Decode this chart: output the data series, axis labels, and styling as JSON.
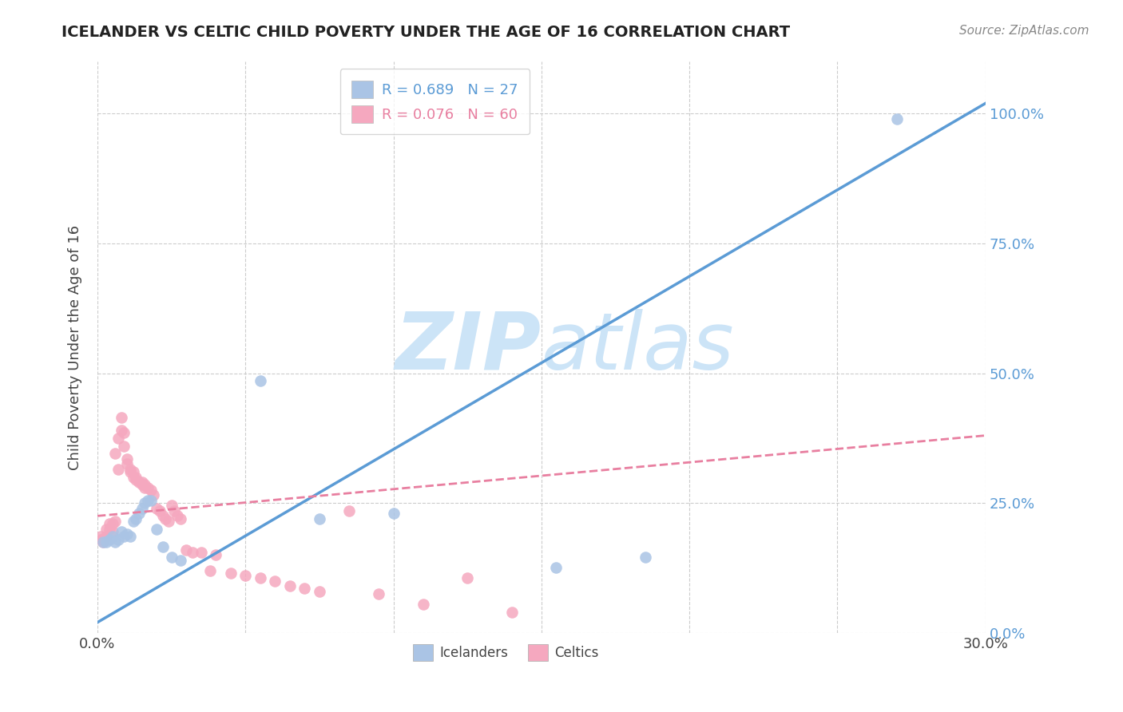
{
  "title": "ICELANDER VS CELTIC CHILD POVERTY UNDER THE AGE OF 16 CORRELATION CHART",
  "source": "Source: ZipAtlas.com",
  "ylabel": "Child Poverty Under the Age of 16",
  "xlim": [
    0.0,
    0.3
  ],
  "ylim": [
    0.0,
    1.1
  ],
  "ytick_vals": [
    0.0,
    0.25,
    0.5,
    0.75,
    1.0
  ],
  "xtick_vals": [
    0.0,
    0.05,
    0.1,
    0.15,
    0.2,
    0.25,
    0.3
  ],
  "icelander_R": 0.689,
  "icelander_N": 27,
  "celtic_R": 0.076,
  "celtic_N": 60,
  "icelander_color": "#aac4e5",
  "celtic_color": "#f5a8bf",
  "icelander_line_color": "#5b9bd5",
  "celtic_line_color": "#e87fa0",
  "right_axis_color": "#5b9bd5",
  "watermark_color": "#cce4f7",
  "background_color": "#ffffff",
  "grid_color": "#cccccc",
  "icelander_x": [
    0.002,
    0.003,
    0.004,
    0.005,
    0.006,
    0.007,
    0.008,
    0.009,
    0.01,
    0.011,
    0.012,
    0.013,
    0.014,
    0.015,
    0.016,
    0.017,
    0.018,
    0.02,
    0.022,
    0.025,
    0.028,
    0.055,
    0.075,
    0.1,
    0.155,
    0.185,
    0.27
  ],
  "icelander_y": [
    0.175,
    0.175,
    0.18,
    0.185,
    0.175,
    0.18,
    0.195,
    0.185,
    0.19,
    0.185,
    0.215,
    0.22,
    0.23,
    0.24,
    0.25,
    0.255,
    0.255,
    0.2,
    0.165,
    0.145,
    0.14,
    0.485,
    0.22,
    0.23,
    0.125,
    0.145,
    0.99
  ],
  "celtic_x": [
    0.001,
    0.001,
    0.002,
    0.002,
    0.003,
    0.003,
    0.004,
    0.004,
    0.005,
    0.005,
    0.006,
    0.006,
    0.007,
    0.007,
    0.008,
    0.008,
    0.009,
    0.009,
    0.01,
    0.01,
    0.011,
    0.011,
    0.012,
    0.012,
    0.013,
    0.013,
    0.014,
    0.015,
    0.015,
    0.016,
    0.016,
    0.017,
    0.018,
    0.019,
    0.02,
    0.021,
    0.022,
    0.023,
    0.024,
    0.025,
    0.026,
    0.027,
    0.028,
    0.03,
    0.032,
    0.035,
    0.038,
    0.04,
    0.045,
    0.05,
    0.055,
    0.06,
    0.065,
    0.07,
    0.075,
    0.085,
    0.095,
    0.11,
    0.125,
    0.14
  ],
  "celtic_y": [
    0.18,
    0.185,
    0.175,
    0.18,
    0.185,
    0.2,
    0.2,
    0.21,
    0.195,
    0.21,
    0.345,
    0.215,
    0.315,
    0.375,
    0.415,
    0.39,
    0.385,
    0.36,
    0.335,
    0.325,
    0.31,
    0.315,
    0.31,
    0.3,
    0.3,
    0.295,
    0.29,
    0.29,
    0.285,
    0.285,
    0.28,
    0.28,
    0.275,
    0.265,
    0.24,
    0.235,
    0.225,
    0.22,
    0.215,
    0.245,
    0.235,
    0.225,
    0.22,
    0.16,
    0.155,
    0.155,
    0.12,
    0.15,
    0.115,
    0.11,
    0.105,
    0.1,
    0.09,
    0.085,
    0.08,
    0.235,
    0.075,
    0.055,
    0.105,
    0.04
  ],
  "icelander_line_x": [
    0.0,
    0.3
  ],
  "icelander_line_y": [
    0.02,
    1.02
  ],
  "celtic_line_x": [
    0.0,
    0.3
  ],
  "celtic_line_y": [
    0.225,
    0.38
  ]
}
